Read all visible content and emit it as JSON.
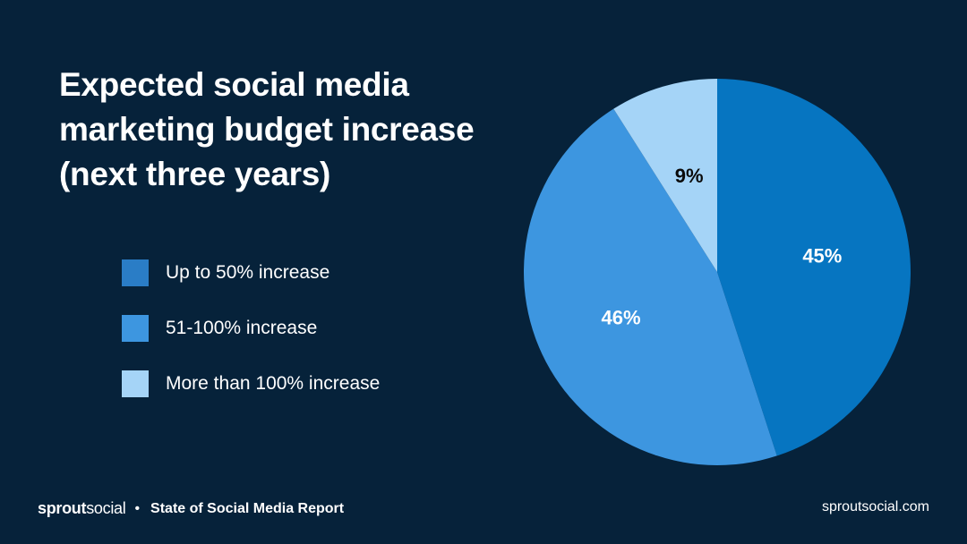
{
  "chart_data": {
    "type": "pie",
    "title": "Expected social media marketing budget increase (next three years)",
    "slices": [
      {
        "name": "Up to 50% increase",
        "value": 45,
        "label": "45%",
        "color": "#0675c1",
        "legend_color": "#2a7dc6",
        "label_color": "#ffffff"
      },
      {
        "name": "51-100% increase",
        "value": 46,
        "label": "46%",
        "color": "#3d96e0",
        "legend_color": "#3d96e0",
        "label_color": "#ffffff"
      },
      {
        "name": "More than 100% increase",
        "value": 9,
        "label": "9%",
        "color": "#a5d4f7",
        "legend_color": "#a5d4f7",
        "label_color": "#0a0a0a"
      }
    ],
    "start": "top",
    "direction": "clockwise",
    "legend_placement": "left"
  },
  "footer": {
    "brand_bold": "sprout",
    "brand_light": "social",
    "separator": "•",
    "report": "State of Social Media Report",
    "website": "sproutsocial.com"
  },
  "colors": {
    "background": "#06223a"
  }
}
